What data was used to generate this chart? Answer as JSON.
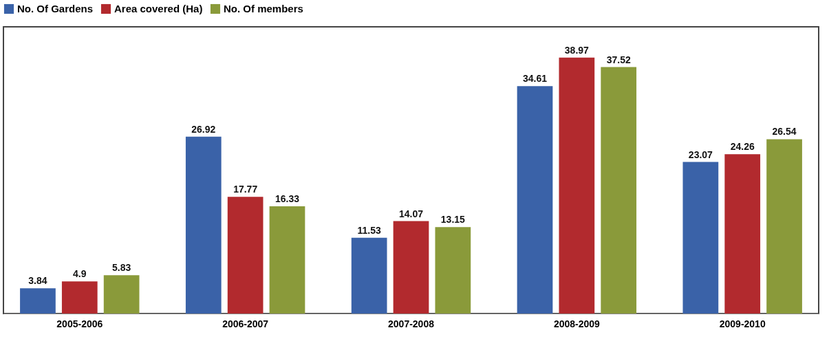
{
  "chart_data": {
    "type": "bar",
    "categories": [
      "2005-2006",
      "2006-2007",
      "2007-2008",
      "2008-2009",
      "2009-2010"
    ],
    "series": [
      {
        "name": "No. Of Gardens",
        "color": "#3a62a8",
        "values": [
          3.84,
          26.92,
          11.53,
          34.61,
          23.07
        ]
      },
      {
        "name": "Area covered (Ha)",
        "color": "#b22a2e",
        "values": [
          4.9,
          17.77,
          14.07,
          38.97,
          24.26
        ]
      },
      {
        "name": "No. Of members",
        "color": "#8a9a3a",
        "values": [
          5.83,
          16.33,
          13.15,
          37.52,
          26.54
        ]
      }
    ],
    "data_labels": true,
    "legend": "top",
    "grid": false
  }
}
